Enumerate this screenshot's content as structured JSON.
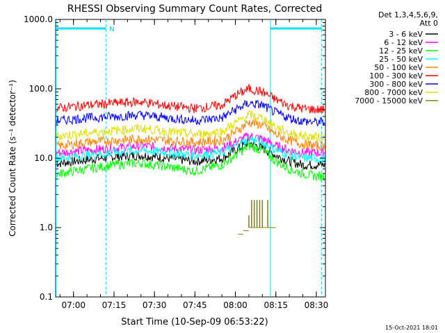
{
  "chart_data": {
    "type": "line",
    "title": "RHESSI Observing Summary Count Rates, Corrected",
    "xlabel": "Start Time (10-Sep-09 06:53:22)",
    "ylabel": "Corrected Count Rate (s⁻¹ detector⁻¹)",
    "y_scale": "log",
    "ylim": [
      0.1,
      1000
    ],
    "y_ticks": [
      "1000.0",
      "100.0",
      "10.0",
      "1.0",
      "0.1"
    ],
    "x_ticks": [
      "07:00",
      "07:15",
      "07:30",
      "07:45",
      "08:00",
      "08:15",
      "08:30"
    ],
    "xlim": [
      "06:53:22",
      "08:33:22"
    ],
    "legend_header": [
      "Det 1,3,4,5,6,9,",
      "Att 0"
    ],
    "legend_placement": "right",
    "footer_date": "15-Oct-2021 18:01",
    "annotations": [
      {
        "text": "N",
        "x": "07:12"
      }
    ],
    "bars": [
      {
        "x_start": "06:53:22",
        "x_end": "07:12",
        "kind": "night"
      },
      {
        "x_start": "08:13",
        "x_end": "08:32",
        "kind": "night"
      }
    ],
    "vlines": [
      {
        "x": "06:53:30",
        "style": "solid"
      },
      {
        "x": "07:12",
        "style": "dashed"
      },
      {
        "x": "08:13",
        "style": "solid"
      },
      {
        "x": "08:32",
        "style": "dashed"
      }
    ],
    "series": [
      {
        "name": "3 - 6 keV",
        "color": "#000000",
        "x": [
          "06:55",
          "07:05",
          "07:15",
          "07:25",
          "07:35",
          "07:45",
          "07:55",
          "08:00",
          "08:05",
          "08:10",
          "08:15",
          "08:20",
          "08:25",
          "08:30"
        ],
        "y": [
          8.5,
          9.5,
          10.5,
          11,
          10,
          9,
          10,
          13,
          17,
          14,
          11,
          9,
          8,
          8
        ]
      },
      {
        "name": "6 - 12 keV",
        "color": "#ff00ff",
        "x": [
          "06:55",
          "07:05",
          "07:15",
          "07:25",
          "07:35",
          "07:45",
          "07:55",
          "08:00",
          "08:05",
          "08:10",
          "08:15",
          "08:20",
          "08:25",
          "08:30"
        ],
        "y": [
          12,
          13,
          14,
          15,
          14,
          13,
          14,
          17,
          21,
          19,
          15,
          13,
          12,
          12
        ]
      },
      {
        "name": "12 - 25 keV",
        "color": "#00ff00",
        "x": [
          "06:55",
          "07:05",
          "07:15",
          "07:25",
          "07:35",
          "07:45",
          "07:55",
          "08:00",
          "08:05",
          "08:10",
          "08:15",
          "08:20",
          "08:25",
          "08:30"
        ],
        "y": [
          6,
          7,
          8,
          8.5,
          7.5,
          6.5,
          8,
          11,
          15,
          13,
          9,
          7,
          6,
          5.5
        ]
      },
      {
        "name": "25 - 50 keV",
        "color": "#00ffff",
        "x": [
          "06:55",
          "07:05",
          "07:15",
          "07:25",
          "07:35",
          "07:45",
          "07:55",
          "08:00",
          "08:05",
          "08:10",
          "08:15",
          "08:20",
          "08:25",
          "08:30"
        ],
        "y": [
          10,
          11,
          12,
          13,
          12,
          11,
          12,
          15,
          19,
          17,
          13,
          11,
          10,
          10
        ]
      },
      {
        "name": "50 - 100 keV",
        "color": "#ff8000",
        "x": [
          "06:55",
          "07:05",
          "07:15",
          "07:25",
          "07:35",
          "07:45",
          "07:55",
          "08:00",
          "08:05",
          "08:10",
          "08:15",
          "08:20",
          "08:25",
          "08:30"
        ],
        "y": [
          15,
          17,
          18,
          19,
          18,
          17,
          18,
          24,
          33,
          30,
          22,
          18,
          16,
          15
        ]
      },
      {
        "name": "100 - 300 keV",
        "color": "#ff0000",
        "x": [
          "06:55",
          "07:05",
          "07:15",
          "07:25",
          "07:35",
          "07:45",
          "07:55",
          "08:00",
          "08:05",
          "08:10",
          "08:15",
          "08:20",
          "08:25",
          "08:30"
        ],
        "y": [
          53,
          58,
          62,
          65,
          57,
          52,
          58,
          80,
          100,
          90,
          70,
          57,
          52,
          50
        ]
      },
      {
        "name": "300 - 800 keV",
        "color": "#0000ff",
        "x": [
          "06:55",
          "07:05",
          "07:15",
          "07:25",
          "07:35",
          "07:45",
          "07:55",
          "08:00",
          "08:05",
          "08:10",
          "08:15",
          "08:20",
          "08:25",
          "08:30"
        ],
        "y": [
          35,
          38,
          40,
          42,
          38,
          35,
          38,
          50,
          62,
          58,
          45,
          38,
          34,
          33
        ]
      },
      {
        "name": "800 - 7000 keV",
        "color": "#e0e000",
        "x": [
          "06:55",
          "07:05",
          "07:15",
          "07:25",
          "07:35",
          "07:45",
          "07:55",
          "08:00",
          "08:05",
          "08:10",
          "08:15",
          "08:20",
          "08:25",
          "08:30"
        ],
        "y": [
          21,
          23,
          25,
          27,
          24,
          22,
          24,
          32,
          42,
          38,
          28,
          23,
          21,
          20
        ]
      },
      {
        "name": "7000 - 15000 keV",
        "color": "#808000",
        "x": [
          "08:01",
          "08:03",
          "08:05",
          "08:06",
          "08:07",
          "08:08",
          "08:09",
          "08:10",
          "08:11",
          "08:12",
          "08:15"
        ],
        "y": [
          0.8,
          0.9,
          1.5,
          2.5,
          2.5,
          2.5,
          2.5,
          2.5,
          1.0,
          2.5,
          1.0
        ]
      }
    ]
  }
}
